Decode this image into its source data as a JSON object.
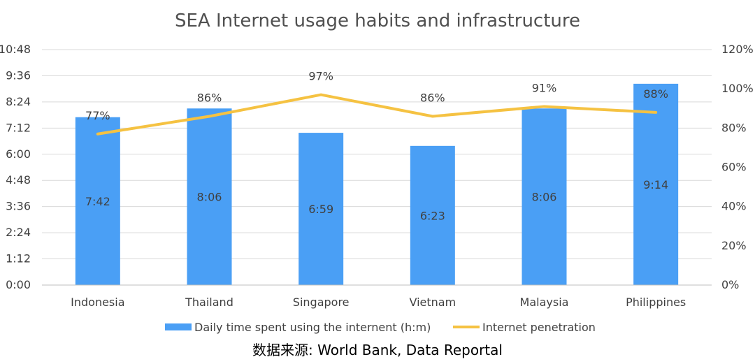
{
  "chart_data": {
    "type": "bar",
    "title": "SEA Internet usage habits and infrastructure",
    "categories": [
      "Indonesia",
      "Thailand",
      "Singapore",
      "Vietnam",
      "Malaysia",
      "Philippines"
    ],
    "series": [
      {
        "name": "Daily time spent using the internent (h:m)",
        "type": "bar",
        "axis": "left",
        "values_minutes": [
          462,
          486,
          419,
          383,
          486,
          554
        ],
        "labels": [
          "7:42",
          "8:06",
          "6:59",
          "6:23",
          "8:06",
          "9:14"
        ],
        "color": "#4a9ff5"
      },
      {
        "name": "Internet penetration",
        "type": "line",
        "axis": "right",
        "values": [
          77,
          86,
          97,
          86,
          91,
          88
        ],
        "labels": [
          "77%",
          "86%",
          "97%",
          "86%",
          "91%",
          "88%"
        ],
        "color": "#f5c242"
      }
    ],
    "y_left": {
      "ticks": [
        "0:00",
        "1:12",
        "2:24",
        "3:36",
        "4:48",
        "6:00",
        "7:12",
        "8:24",
        "9:36",
        "10:48"
      ],
      "tick_values_minutes": [
        0,
        72,
        144,
        216,
        288,
        360,
        432,
        504,
        576,
        648
      ],
      "range_minutes": [
        0,
        648
      ]
    },
    "y_right": {
      "ticks": [
        "0%",
        "20%",
        "40%",
        "60%",
        "80%",
        "100%",
        "120%"
      ],
      "tick_values": [
        0,
        20,
        40,
        60,
        80,
        100,
        120
      ],
      "range": [
        0,
        120
      ]
    },
    "grid": true,
    "legend_position": "bottom"
  },
  "footer": {
    "source": "数据来源: World Bank, Data Reportal"
  },
  "colors": {
    "gridline": "#d9d9d9",
    "axis": "#bfbfbf",
    "text": "#404040"
  }
}
